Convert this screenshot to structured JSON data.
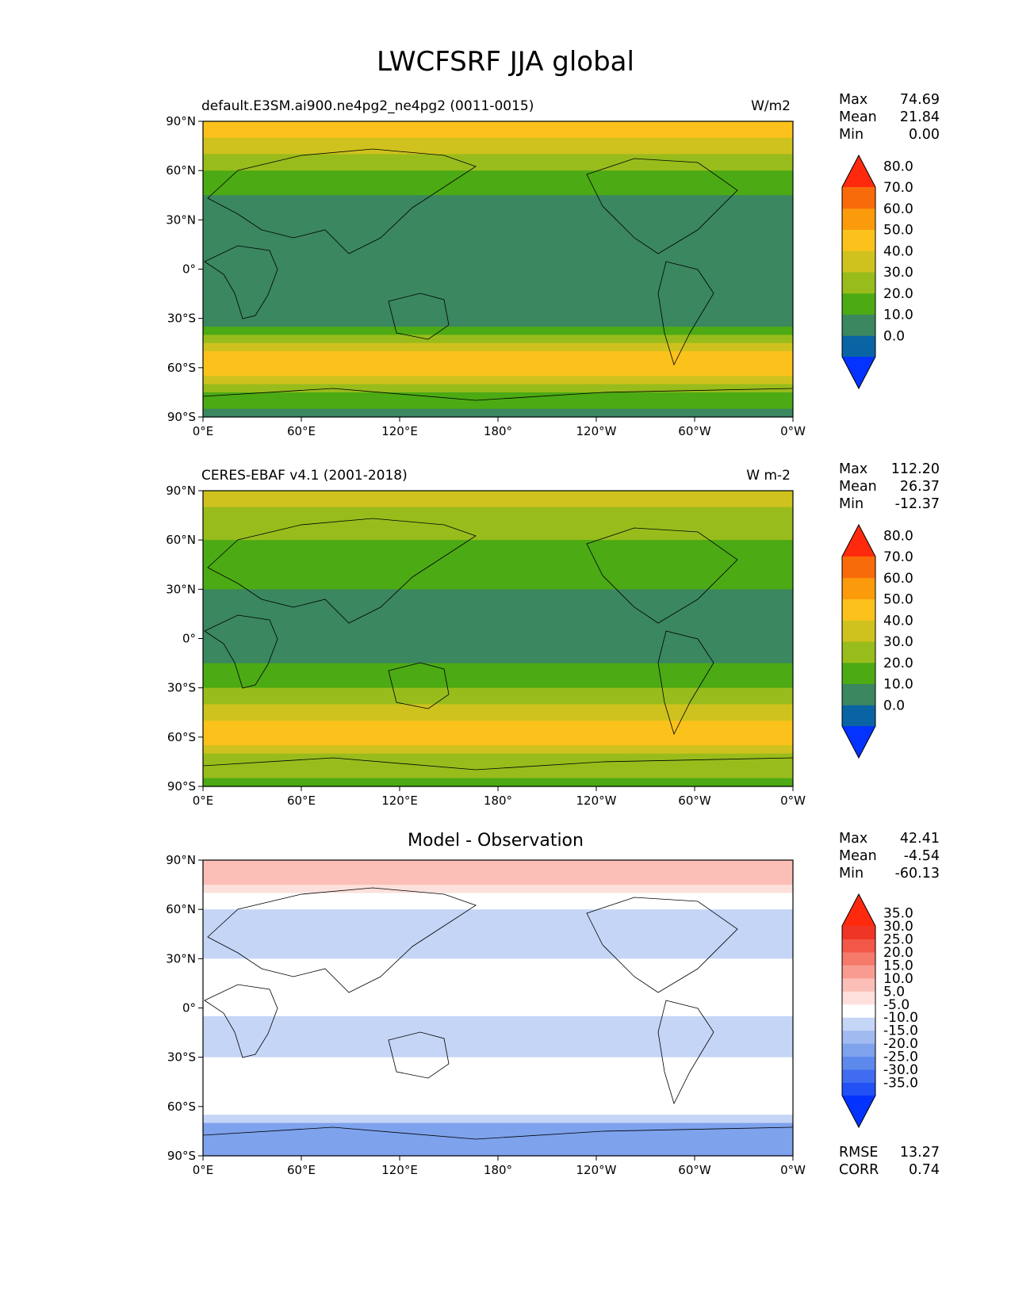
{
  "title": "LWCFSRF JJA global",
  "x_tick_labels": [
    "0°E",
    "60°E",
    "120°E",
    "180°",
    "120°W",
    "60°W",
    "0°W"
  ],
  "y_tick_labels": [
    "90°N",
    "60°N",
    "30°N",
    "0°",
    "30°S",
    "60°S",
    "90°S"
  ],
  "stat_labels": {
    "max": "Max",
    "mean": "Mean",
    "min": "Min",
    "rmse": "RMSE",
    "corr": "CORR"
  },
  "panels": [
    {
      "title_left": "default.E3SM.ai900.ne4pg2_ne4pg2 (0011-0015)",
      "title_right": "W/m2",
      "stats": {
        "max": "74.69",
        "mean": "21.84",
        "min": "0.00"
      },
      "colorbar_ticks": [
        "0.0",
        "10.0",
        "20.0",
        "30.0",
        "40.0",
        "50.0",
        "60.0",
        "70.0",
        "80.0"
      ],
      "colorbar_colors": [
        "#0433ff",
        "#0a64a4",
        "#3a8760",
        "#4caa14",
        "#98bc1c",
        "#cfc21e",
        "#fbc21c",
        "#fb9b0c",
        "#f86b0a",
        "#ff2a0d"
      ]
    },
    {
      "title_left": "CERES-EBAF v4.1 (2001-2018)",
      "title_right": "W m-2",
      "stats": {
        "max": "112.20",
        "mean": "26.37",
        "min": "-12.37"
      },
      "colorbar_ticks": [
        "0.0",
        "10.0",
        "20.0",
        "30.0",
        "40.0",
        "50.0",
        "60.0",
        "70.0",
        "80.0"
      ],
      "colorbar_colors": [
        "#0433ff",
        "#0a64a4",
        "#3a8760",
        "#4caa14",
        "#98bc1c",
        "#cfc21e",
        "#fbc21c",
        "#fb9b0c",
        "#f86b0a",
        "#ff2a0d"
      ]
    },
    {
      "title_center": "Model - Observation",
      "stats": {
        "max": "42.41",
        "mean": "-4.54",
        "min": "-60.13",
        "rmse": "13.27",
        "corr": "0.74"
      },
      "colorbar_ticks": [
        "-35.0",
        "-30.0",
        "-25.0",
        "-20.0",
        "-15.0",
        "-10.0",
        "-5.0",
        "5.0",
        "10.0",
        "15.0",
        "20.0",
        "25.0",
        "30.0",
        "35.0"
      ],
      "colorbar_colors": [
        "#0433ff",
        "#2150f5",
        "#3f6cf0",
        "#5d88ec",
        "#7ea2ec",
        "#a1bbf0",
        "#c5d5f6",
        "#ffffff",
        "#fde0dc",
        "#fbbfb8",
        "#f89c92",
        "#f57a6c",
        "#f25748",
        "#ef3525",
        "#ff2a0d"
      ]
    }
  ],
  "chart_data": {
    "type": "heatmap",
    "projection": "equirectangular",
    "x_range_deg": [
      0,
      360
    ],
    "y_range_deg": [
      -90,
      90
    ],
    "fields": [
      {
        "panel": "model",
        "zonal_mean_by_lat": {
          "lat": [
            90,
            75,
            60,
            45,
            30,
            15,
            0,
            -15,
            -30,
            -45,
            -60,
            -75,
            -90
          ],
          "value": [
            55,
            48,
            30,
            20,
            15,
            14,
            15,
            13,
            14,
            45,
            55,
            25,
            15
          ]
        }
      },
      {
        "panel": "observation",
        "zonal_mean_by_lat": {
          "lat": [
            90,
            75,
            60,
            45,
            30,
            15,
            0,
            -15,
            -30,
            -45,
            -60,
            -75,
            -90
          ],
          "value": [
            45,
            35,
            30,
            28,
            20,
            18,
            18,
            20,
            30,
            45,
            55,
            35,
            25
          ]
        }
      },
      {
        "panel": "difference",
        "zonal_mean_by_lat": {
          "lat": [
            90,
            75,
            60,
            45,
            30,
            15,
            0,
            -15,
            -30,
            -45,
            -60,
            -75,
            -90
          ],
          "value": [
            15,
            12,
            -5,
            -10,
            -5,
            -2,
            -3,
            -8,
            -6,
            2,
            5,
            -20,
            -15
          ]
        }
      }
    ]
  }
}
